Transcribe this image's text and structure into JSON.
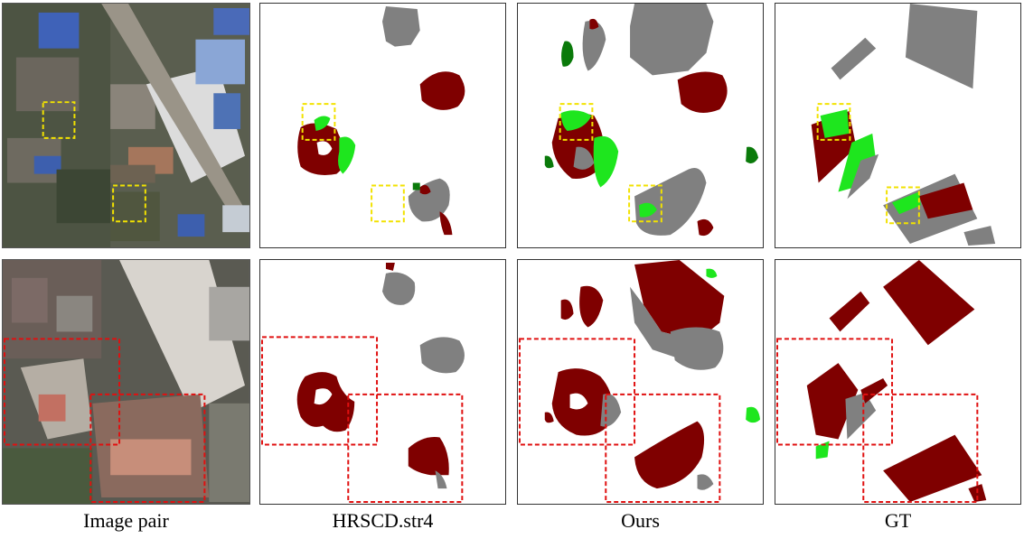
{
  "figure": {
    "columns": [
      {
        "label": "Image pair"
      },
      {
        "label": "HRSCD.str4"
      },
      {
        "label": "Ours"
      },
      {
        "label": "GT"
      }
    ],
    "rows": [
      {
        "annotation": "yellow dashed boxes"
      },
      {
        "annotation": "red dashed boxes"
      }
    ],
    "colors": {
      "dark_red": "#7f0000",
      "gray": "#808080",
      "bright_green": "#1ee61e",
      "dark_green": "#0a7a0a",
      "yellow_box": "#f2e200",
      "red_box": "#e01010"
    }
  }
}
